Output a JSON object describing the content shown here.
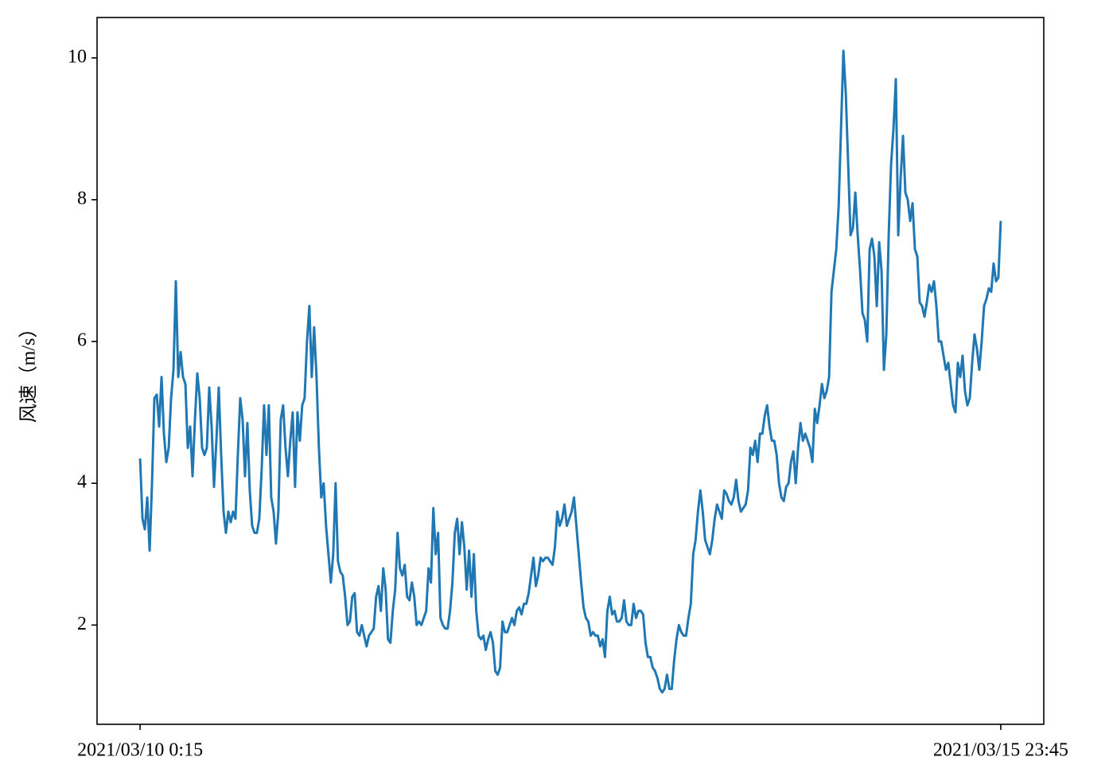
{
  "chart_data": {
    "type": "line",
    "ylabel": "风速（m/s）",
    "categories": [
      "2021/03/10 0:15",
      null,
      null,
      null,
      null,
      null,
      null,
      null,
      null,
      null,
      null,
      null,
      null,
      null,
      null,
      null,
      null,
      null,
      null,
      null,
      null,
      null,
      null,
      null,
      null,
      null,
      null,
      null,
      null,
      null,
      null,
      null,
      null,
      null,
      null,
      null,
      null,
      null,
      null,
      null,
      null,
      null,
      null,
      null,
      null,
      null,
      null,
      null,
      null,
      null,
      null,
      null,
      null,
      null,
      null,
      null,
      null,
      null,
      null,
      null,
      null,
      null,
      null,
      null,
      null,
      null,
      null,
      null,
      null,
      null,
      null,
      null,
      null,
      null,
      null,
      null,
      null,
      null,
      null,
      null,
      null,
      null,
      null,
      null,
      null,
      null,
      null,
      null,
      null,
      null,
      null,
      null,
      null,
      null,
      null,
      null,
      null,
      null,
      null,
      null,
      null,
      null,
      null,
      null,
      null,
      null,
      null,
      null,
      null,
      null,
      null,
      null,
      null,
      null,
      null,
      null,
      null,
      null,
      null,
      null,
      null,
      null,
      null,
      null,
      null,
      null,
      null,
      null,
      null,
      null,
      null,
      null,
      null,
      null,
      null,
      null,
      null,
      null,
      null,
      null,
      null,
      null,
      null,
      null,
      null,
      null,
      null,
      null,
      null,
      null,
      null,
      null,
      null,
      null,
      null,
      null,
      null,
      null,
      null,
      null,
      null,
      null,
      null,
      null,
      null,
      null,
      null,
      null,
      null,
      null,
      null,
      null,
      null,
      null,
      null,
      null,
      null,
      null,
      null,
      null,
      null,
      null,
      null,
      null,
      null,
      null,
      null,
      null,
      null,
      null,
      null,
      null,
      null,
      null,
      null,
      null,
      null,
      null,
      null,
      null,
      null,
      null,
      null,
      null,
      null,
      null,
      null,
      null,
      null,
      null,
      null,
      null,
      null,
      null,
      null,
      null,
      null,
      null,
      null,
      null,
      null,
      null,
      null,
      null,
      null,
      null,
      null,
      null,
      null,
      null,
      null,
      null,
      null,
      null,
      null,
      null,
      null,
      null,
      null,
      null,
      null,
      null,
      null,
      null,
      null,
      null,
      null,
      null,
      null,
      null,
      null,
      null,
      null,
      null,
      null,
      null,
      null,
      null,
      null,
      null,
      null,
      null,
      null,
      null,
      null,
      null,
      null,
      null,
      null,
      null,
      null,
      null,
      null,
      null,
      null,
      null,
      null,
      null,
      null,
      null,
      null,
      null,
      null,
      null,
      null,
      null,
      null,
      null,
      null,
      null,
      null,
      null,
      null,
      null,
      null,
      null,
      null,
      null,
      null,
      null,
      null,
      null,
      null,
      null,
      null,
      null,
      null,
      null,
      null,
      null,
      null,
      null,
      null,
      null,
      null,
      null,
      null,
      null,
      null,
      null,
      null,
      null,
      null,
      null,
      null,
      null,
      null,
      null,
      null,
      null,
      null,
      null,
      null,
      null,
      null,
      null,
      null,
      null,
      null,
      null,
      null,
      null,
      null,
      null,
      null,
      null,
      null,
      null,
      null,
      null,
      null,
      null,
      null,
      null,
      null,
      null,
      null,
      null,
      null,
      null,
      null,
      "2021/03/15 23:45"
    ],
    "series": [
      {
        "color": "#1f77b4",
        "values": [
          4.35,
          3.5,
          3.35,
          3.8,
          3.05,
          4.0,
          5.2,
          5.25,
          4.8,
          5.5,
          4.7,
          4.3,
          4.5,
          5.2,
          5.6,
          6.85,
          5.5,
          5.85,
          5.5,
          5.4,
          4.5,
          4.8,
          4.1,
          4.9,
          5.55,
          5.2,
          4.5,
          4.4,
          4.5,
          5.35,
          4.8,
          3.95,
          4.6,
          5.35,
          4.4,
          3.6,
          3.3,
          3.6,
          3.45,
          3.6,
          3.5,
          4.4,
          5.2,
          4.9,
          4.1,
          4.85,
          3.9,
          3.4,
          3.3,
          3.3,
          3.5,
          4.2,
          5.1,
          4.4,
          5.1,
          3.8,
          3.6,
          3.15,
          3.6,
          4.9,
          5.1,
          4.5,
          4.1,
          4.6,
          5.0,
          3.95,
          5.0,
          4.6,
          5.1,
          5.2,
          6.0,
          6.5,
          5.5,
          6.2,
          5.5,
          4.5,
          3.8,
          4.0,
          3.4,
          3.0,
          2.6,
          3.0,
          4.0,
          2.9,
          2.75,
          2.7,
          2.4,
          2.0,
          2.05,
          2.4,
          2.45,
          1.9,
          1.85,
          2.0,
          1.85,
          1.7,
          1.85,
          1.9,
          1.95,
          2.4,
          2.55,
          2.2,
          2.8,
          2.5,
          1.8,
          1.75,
          2.2,
          2.5,
          3.3,
          2.8,
          2.7,
          2.85,
          2.4,
          2.35,
          2.6,
          2.4,
          2.0,
          2.05,
          2.0,
          2.1,
          2.2,
          2.8,
          2.6,
          3.65,
          3.0,
          3.3,
          2.1,
          2.0,
          1.95,
          1.95,
          2.2,
          2.6,
          3.3,
          3.5,
          3.0,
          3.45,
          3.1,
          2.5,
          3.05,
          2.4,
          3.0,
          2.2,
          1.85,
          1.8,
          1.85,
          1.65,
          1.8,
          1.9,
          1.75,
          1.35,
          1.3,
          1.4,
          2.05,
          1.9,
          1.9,
          2.0,
          2.1,
          2.0,
          2.2,
          2.25,
          2.15,
          2.3,
          2.3,
          2.45,
          2.7,
          2.95,
          2.55,
          2.7,
          2.95,
          2.9,
          2.95,
          2.95,
          2.9,
          2.85,
          3.1,
          3.6,
          3.4,
          3.5,
          3.7,
          3.4,
          3.5,
          3.6,
          3.8,
          3.4,
          3.0,
          2.6,
          2.25,
          2.1,
          2.05,
          1.85,
          1.9,
          1.85,
          1.85,
          1.7,
          1.8,
          1.55,
          2.2,
          2.4,
          2.15,
          2.2,
          2.05,
          2.05,
          2.1,
          2.35,
          2.05,
          2.0,
          2.0,
          2.3,
          2.1,
          2.2,
          2.2,
          2.15,
          1.75,
          1.55,
          1.55,
          1.4,
          1.35,
          1.25,
          1.1,
          1.05,
          1.1,
          1.3,
          1.1,
          1.1,
          1.5,
          1.8,
          2.0,
          1.9,
          1.85,
          1.85,
          2.1,
          2.3,
          3.0,
          3.2,
          3.6,
          3.9,
          3.6,
          3.2,
          3.1,
          3.0,
          3.2,
          3.5,
          3.7,
          3.6,
          3.5,
          3.9,
          3.85,
          3.75,
          3.7,
          3.8,
          4.05,
          3.75,
          3.6,
          3.65,
          3.7,
          3.9,
          4.5,
          4.4,
          4.6,
          4.3,
          4.7,
          4.7,
          4.95,
          5.1,
          4.8,
          4.6,
          4.6,
          4.4,
          4.0,
          3.8,
          3.75,
          3.95,
          4.0,
          4.3,
          4.45,
          4.0,
          4.5,
          4.85,
          4.6,
          4.7,
          4.6,
          4.5,
          4.3,
          5.05,
          4.85,
          5.1,
          5.4,
          5.2,
          5.3,
          5.5,
          6.7,
          7.0,
          7.3,
          7.9,
          9.0,
          10.1,
          9.5,
          8.5,
          7.5,
          7.6,
          8.1,
          7.5,
          7.0,
          6.4,
          6.3,
          6.0,
          7.3,
          7.45,
          7.2,
          6.5,
          7.4,
          7.0,
          5.6,
          6.1,
          7.5,
          8.5,
          9.0,
          9.7,
          7.5,
          8.3,
          8.9,
          8.1,
          8.0,
          7.7,
          7.95,
          7.3,
          7.2,
          6.55,
          6.5,
          6.35,
          6.55,
          6.8,
          6.7,
          6.85,
          6.5,
          6.0,
          6.0,
          5.8,
          5.6,
          5.7,
          5.4,
          5.1,
          5.0,
          5.7,
          5.5,
          5.8,
          5.3,
          5.1,
          5.2,
          5.7,
          6.1,
          5.9,
          5.6,
          6.0,
          6.5,
          6.6,
          6.75,
          6.7,
          7.1,
          6.85,
          6.9,
          7.7
        ]
      }
    ],
    "ylim": [
      0.6,
      10.57
    ],
    "yticks": [
      2,
      4,
      6,
      8,
      10
    ]
  }
}
